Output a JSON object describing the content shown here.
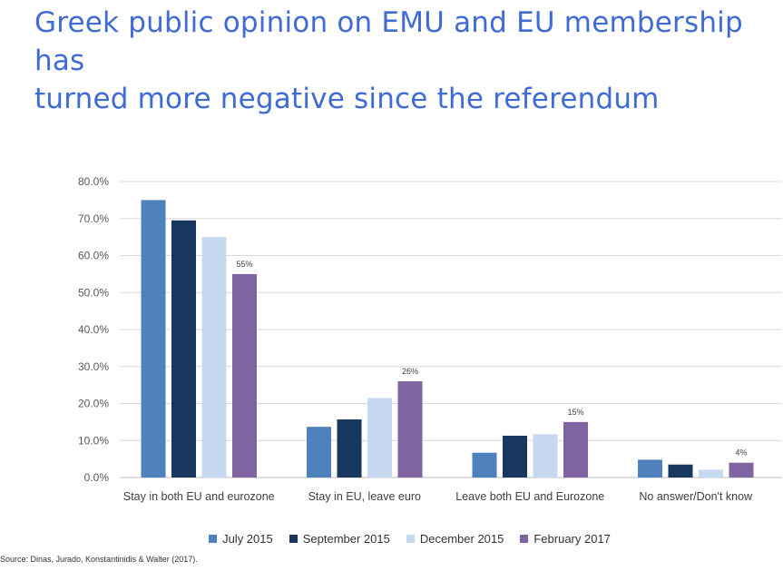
{
  "title_lines": [
    "Greek public opinion on EMU and EU membership has",
    "turned more negative since the referendum"
  ],
  "source": "Source: Dinas, Jurado, Konstantinidis & Walter (2017).",
  "chart_data": {
    "type": "bar",
    "title": "Greek public opinion on EMU and EU membership has turned more negative since the referendum",
    "categories": [
      "Stay in both EU and eurozone",
      "Stay in EU, leave euro",
      "Leave both EU and Eurozone",
      "No answer/Don't know"
    ],
    "series": [
      {
        "name": "July 2015",
        "color": "#4f81bd",
        "values": [
          75,
          13.7,
          6.7,
          4.8
        ]
      },
      {
        "name": "September 2015",
        "color": "#17375e",
        "values": [
          69.5,
          15.7,
          11.3,
          3.5
        ]
      },
      {
        "name": "December 2015",
        "color": "#c6d9f1",
        "values": [
          65,
          21.5,
          11.7,
          2.1
        ]
      },
      {
        "name": "February 2017",
        "color": "#8064a2",
        "values": [
          55,
          26,
          15,
          4
        ]
      }
    ],
    "data_labels": [
      {
        "series": 3,
        "category": 0,
        "text": "55%"
      },
      {
        "series": 3,
        "category": 1,
        "text": "26%"
      },
      {
        "series": 3,
        "category": 2,
        "text": "15%"
      },
      {
        "series": 3,
        "category": 3,
        "text": "4%"
      }
    ],
    "ylim": [
      0,
      80
    ],
    "yticks": [
      "0.0%",
      "10.0%",
      "20.0%",
      "30.0%",
      "40.0%",
      "50.0%",
      "60.0%",
      "70.0%",
      "80.0%"
    ],
    "xlabel": "",
    "ylabel": "",
    "grid": true,
    "legend_position": "bottom"
  }
}
